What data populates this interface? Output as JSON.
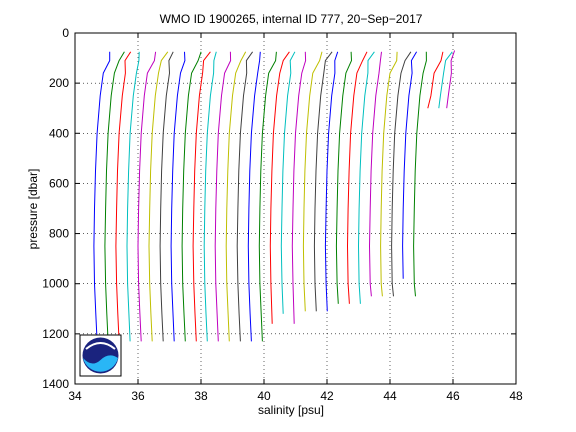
{
  "chart_data": {
    "type": "line",
    "title": "WMO ID 1900265, internal ID 777, 20−Sep−2017",
    "xlabel": "salinity [psu]",
    "ylabel": "pressure [dbar]",
    "xlim": [
      34,
      48
    ],
    "ylim": [
      0,
      1400
    ],
    "y_reversed": true,
    "xticks": [
      "34",
      "36",
      "38",
      "40",
      "42",
      "44",
      "46",
      "48"
    ],
    "yticks": [
      "0",
      "200",
      "400",
      "600",
      "800",
      "1000",
      "1200",
      "1400"
    ],
    "grid": true,
    "offset_per_profile_psu": 0.35,
    "colors": [
      "#0000ff",
      "#008000",
      "#ff0000",
      "#00bfbf",
      "#bf00bf",
      "#bfbf00",
      "#404040"
    ],
    "logo": "noaa-logo",
    "series": [
      {
        "x": [
          35.1,
          35.0,
          34.9,
          34.8,
          34.7,
          34.65,
          34.62,
          34.6,
          34.62,
          34.66,
          34.7
        ],
        "y": [
          75,
          110,
          160,
          250,
          400,
          550,
          700,
          850,
          1000,
          1120,
          1230
        ]
      },
      {
        "x": [
          35.45,
          35.35,
          35.25,
          35.15,
          35.05,
          35.0,
          34.97,
          34.95,
          34.97,
          35.01,
          35.05
        ],
        "y": [
          75,
          110,
          160,
          250,
          400,
          550,
          700,
          850,
          1000,
          1120,
          1230
        ]
      },
      {
        "x": [
          35.8,
          35.7,
          35.6,
          35.5,
          35.4,
          35.35,
          35.32,
          35.3,
          35.32,
          35.36,
          35.4
        ],
        "y": [
          75,
          110,
          160,
          250,
          400,
          550,
          700,
          850,
          1000,
          1120,
          1230
        ]
      },
      {
        "x": [
          36.15,
          36.05,
          35.95,
          35.85,
          35.75,
          35.7,
          35.67,
          35.65,
          35.67,
          35.71,
          35.75
        ],
        "y": [
          75,
          110,
          160,
          250,
          400,
          550,
          700,
          850,
          1000,
          1120,
          1230
        ]
      },
      {
        "x": [
          36.5,
          36.4,
          36.3,
          36.2,
          36.1,
          36.05,
          36.02,
          36.0,
          36.02,
          36.06,
          36.1
        ],
        "y": [
          75,
          110,
          160,
          250,
          400,
          550,
          700,
          850,
          1000,
          1120,
          1230
        ]
      },
      {
        "x": [
          36.85,
          36.75,
          36.65,
          36.55,
          36.45,
          36.4,
          36.37,
          36.35,
          36.37,
          36.41,
          36.45
        ],
        "y": [
          75,
          110,
          160,
          250,
          400,
          550,
          700,
          850,
          1000,
          1120,
          1230
        ]
      },
      {
        "x": [
          37.2,
          37.1,
          37.0,
          36.9,
          36.8,
          36.75,
          36.72,
          36.7,
          36.72,
          36.76,
          36.8
        ],
        "y": [
          75,
          110,
          160,
          250,
          400,
          550,
          700,
          850,
          1000,
          1120,
          1230
        ]
      },
      {
        "x": [
          37.55,
          37.45,
          37.35,
          37.25,
          37.15,
          37.1,
          37.07,
          37.05,
          37.07,
          37.11,
          37.15
        ],
        "y": [
          75,
          110,
          160,
          250,
          400,
          550,
          700,
          850,
          1000,
          1120,
          1230
        ]
      },
      {
        "x": [
          37.9,
          37.8,
          37.7,
          37.6,
          37.5,
          37.45,
          37.42,
          37.4,
          37.42,
          37.46,
          37.5
        ],
        "y": [
          75,
          110,
          160,
          250,
          400,
          550,
          700,
          850,
          1000,
          1120,
          1230
        ]
      },
      {
        "x": [
          38.25,
          38.15,
          38.05,
          37.95,
          37.85,
          37.8,
          37.77,
          37.75,
          37.77,
          37.81,
          37.85
        ],
        "y": [
          75,
          110,
          160,
          250,
          400,
          550,
          700,
          850,
          1000,
          1120,
          1230
        ]
      },
      {
        "x": [
          38.6,
          38.5,
          38.4,
          38.3,
          38.2,
          38.15,
          38.12,
          38.1,
          38.12,
          38.16,
          38.2
        ],
        "y": [
          75,
          110,
          160,
          250,
          400,
          550,
          700,
          850,
          1000,
          1120,
          1230
        ]
      },
      {
        "x": [
          38.95,
          38.85,
          38.75,
          38.65,
          38.55,
          38.5,
          38.47,
          38.45,
          38.47,
          38.51,
          38.55
        ],
        "y": [
          75,
          110,
          160,
          250,
          400,
          550,
          700,
          850,
          1000,
          1120,
          1230
        ]
      },
      {
        "x": [
          39.3,
          39.2,
          39.1,
          39.0,
          38.9,
          38.85,
          38.82,
          38.8,
          38.82,
          38.86,
          38.9
        ],
        "y": [
          75,
          110,
          160,
          250,
          400,
          550,
          700,
          850,
          1000,
          1120,
          1230
        ]
      },
      {
        "x": [
          39.65,
          39.55,
          39.45,
          39.35,
          39.25,
          39.2,
          39.17,
          39.15,
          39.17,
          39.21,
          39.25
        ],
        "y": [
          75,
          110,
          160,
          250,
          400,
          550,
          700,
          850,
          1000,
          1120,
          1230
        ]
      },
      {
        "x": [
          40.0,
          39.9,
          39.8,
          39.7,
          39.6,
          39.55,
          39.52,
          39.5,
          39.52,
          39.56,
          39.6
        ],
        "y": [
          75,
          110,
          160,
          250,
          400,
          550,
          700,
          850,
          1000,
          1120,
          1230
        ]
      },
      {
        "x": [
          40.35,
          40.25,
          40.15,
          40.05,
          39.95,
          39.9,
          39.87,
          39.85,
          39.87,
          39.91,
          39.95
        ],
        "y": [
          75,
          110,
          160,
          250,
          400,
          550,
          700,
          850,
          1000,
          1120,
          1230
        ]
      },
      {
        "x": [
          40.7,
          40.6,
          40.5,
          40.4,
          40.3,
          40.25,
          40.22,
          40.2,
          40.22,
          40.26
        ],
        "y": [
          75,
          110,
          160,
          250,
          400,
          550,
          700,
          850,
          1000,
          1160
        ]
      },
      {
        "x": [
          41.05,
          40.95,
          40.85,
          40.75,
          40.65,
          40.6,
          40.57,
          40.55,
          40.57,
          40.61
        ],
        "y": [
          75,
          110,
          160,
          250,
          400,
          550,
          700,
          850,
          1000,
          1120
        ]
      },
      {
        "x": [
          41.4,
          41.3,
          41.2,
          41.1,
          41.0,
          40.95,
          40.92,
          40.9,
          40.92,
          40.96
        ],
        "y": [
          75,
          110,
          160,
          250,
          400,
          550,
          700,
          850,
          1000,
          1160
        ]
      },
      {
        "x": [
          41.75,
          41.65,
          41.55,
          41.45,
          41.35,
          41.3,
          41.27,
          41.25,
          41.27,
          41.31
        ],
        "y": [
          75,
          110,
          160,
          250,
          400,
          550,
          700,
          850,
          1000,
          1110
        ]
      },
      {
        "x": [
          42.1,
          42.0,
          41.9,
          41.8,
          41.7,
          41.65,
          41.62,
          41.6,
          41.62,
          41.66
        ],
        "y": [
          75,
          110,
          160,
          250,
          400,
          550,
          700,
          850,
          1000,
          1110
        ]
      },
      {
        "x": [
          42.45,
          42.35,
          42.25,
          42.15,
          42.05,
          42.0,
          41.97,
          41.95,
          41.97,
          42.01
        ],
        "y": [
          75,
          110,
          160,
          250,
          400,
          550,
          700,
          850,
          1000,
          1110
        ]
      },
      {
        "x": [
          42.8,
          42.7,
          42.6,
          42.5,
          42.4,
          42.35,
          42.32,
          42.3,
          42.32,
          42.36
        ],
        "y": [
          75,
          110,
          160,
          250,
          400,
          550,
          700,
          850,
          1000,
          1080
        ]
      },
      {
        "x": [
          43.15,
          43.05,
          42.95,
          42.85,
          42.75,
          42.7,
          42.67,
          42.65,
          42.67,
          42.71
        ],
        "y": [
          75,
          110,
          160,
          250,
          400,
          550,
          700,
          850,
          1000,
          1080
        ]
      },
      {
        "x": [
          43.5,
          43.4,
          43.3,
          43.2,
          43.1,
          43.05,
          43.02,
          43.0,
          43.02,
          43.06
        ],
        "y": [
          75,
          110,
          160,
          250,
          400,
          550,
          700,
          850,
          1000,
          1080
        ]
      },
      {
        "x": [
          43.85,
          43.75,
          43.65,
          43.55,
          43.45,
          43.4,
          43.37,
          43.35,
          43.37,
          43.41
        ],
        "y": [
          75,
          110,
          160,
          250,
          400,
          550,
          700,
          850,
          1000,
          1050
        ]
      },
      {
        "x": [
          44.2,
          44.1,
          44.0,
          43.9,
          43.8,
          43.75,
          43.72,
          43.7,
          43.72,
          43.76
        ],
        "y": [
          75,
          110,
          160,
          250,
          400,
          550,
          700,
          850,
          1000,
          1050
        ]
      },
      {
        "x": [
          44.55,
          44.45,
          44.35,
          44.25,
          44.15,
          44.1,
          44.07,
          44.05,
          44.07,
          44.11
        ],
        "y": [
          75,
          110,
          160,
          250,
          400,
          550,
          700,
          850,
          1000,
          1050
        ]
      },
      {
        "x": [
          44.9,
          44.8,
          44.7,
          44.6,
          44.5,
          44.45,
          44.42,
          44.4,
          44.42
        ],
        "y": [
          75,
          110,
          160,
          250,
          400,
          550,
          700,
          850,
          980
        ]
      },
      {
        "x": [
          45.25,
          45.15,
          45.05,
          44.95,
          44.85,
          44.8,
          44.77,
          44.75,
          44.77,
          44.81
        ],
        "y": [
          75,
          110,
          160,
          250,
          400,
          550,
          700,
          850,
          1000,
          1050
        ]
      },
      {
        "x": [
          45.6,
          45.5,
          45.4,
          45.3,
          45.2
        ],
        "y": [
          75,
          110,
          160,
          250,
          300
        ]
      },
      {
        "x": [
          45.9,
          45.8,
          45.7,
          45.6,
          45.55
        ],
        "y": [
          75,
          110,
          160,
          250,
          300
        ]
      },
      {
        "x": [
          46.15,
          46.05,
          45.95,
          45.85,
          45.8
        ],
        "y": [
          70,
          110,
          160,
          250,
          300
        ]
      }
    ]
  }
}
